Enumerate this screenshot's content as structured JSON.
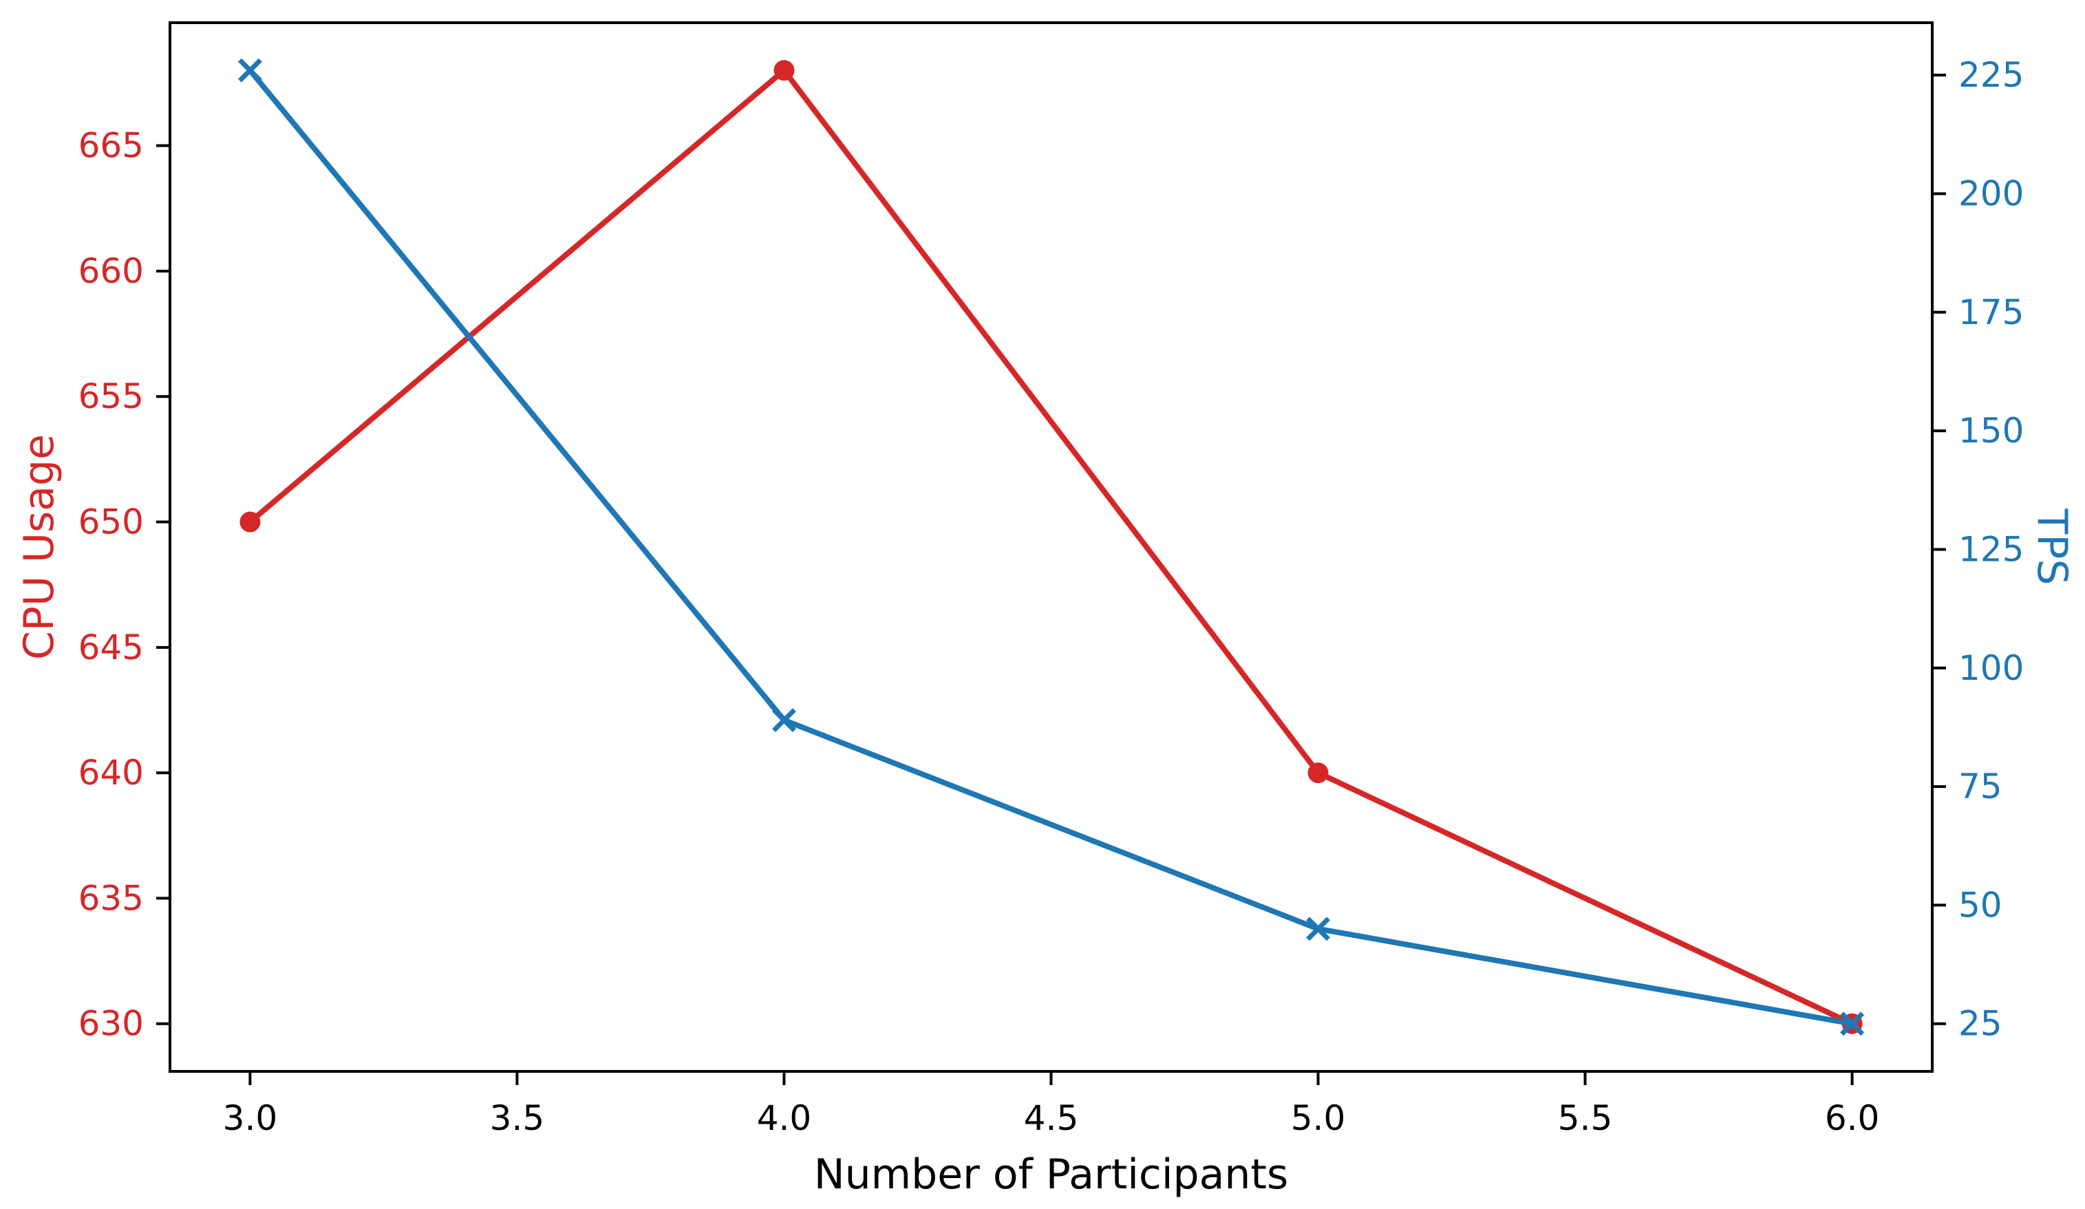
{
  "figure": {
    "background": "#ffffff",
    "axis_color": "#000000"
  },
  "chart_data": {
    "type": "line",
    "x": [
      3.0,
      4.0,
      5.0,
      6.0
    ],
    "series": [
      {
        "name": "CPU Usage",
        "axis": "left",
        "color": "#d62728",
        "marker": "circle",
        "values": [
          650,
          668,
          640,
          630
        ]
      },
      {
        "name": "TPS",
        "axis": "right",
        "color": "#1f77b4",
        "marker": "x",
        "values": [
          226,
          89,
          45,
          25
        ]
      }
    ],
    "title": "",
    "xlabel": "Number of Participants",
    "ylabel_left": "CPU Usage",
    "ylabel_right": "TPS",
    "xlim": [
      2.85,
      6.15
    ],
    "ylim_left": [
      628.1,
      669.9
    ],
    "ylim_right": [
      14.95,
      236.05
    ],
    "xtick_values": [
      3.0,
      3.5,
      4.0,
      4.5,
      5.0,
      5.5,
      6.0
    ],
    "xtick_labels": [
      "3.0",
      "3.5",
      "4.0",
      "4.5",
      "5.0",
      "5.5",
      "6.0"
    ],
    "ytick_left_values": [
      630,
      635,
      640,
      645,
      650,
      655,
      660,
      665
    ],
    "ytick_left_labels": [
      "630",
      "635",
      "640",
      "645",
      "650",
      "655",
      "660",
      "665"
    ],
    "ytick_right_values": [
      25,
      50,
      75,
      100,
      125,
      150,
      175,
      200,
      225
    ],
    "ytick_right_labels": [
      "25",
      "50",
      "75",
      "100",
      "125",
      "150",
      "175",
      "200",
      "225"
    ],
    "grid": false,
    "legend": "none"
  }
}
